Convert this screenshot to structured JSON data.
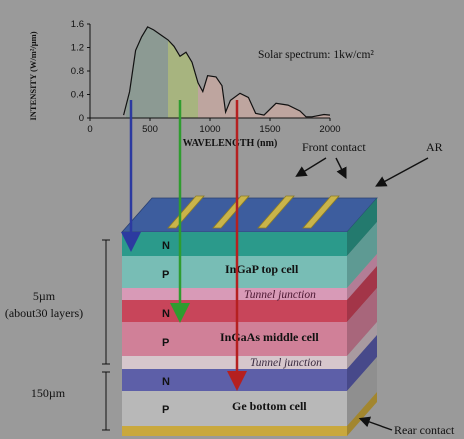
{
  "spectrum": {
    "title": "Solar spectrum: 1kw/cm²",
    "ylabel": "INTENSITY (W/m²/µm)",
    "xlabel": "WAVELENGTH (nm)",
    "xticks": [
      "0",
      "500",
      "1000",
      "1500",
      "2000"
    ],
    "yticks": [
      "0",
      "0.4",
      "0.8",
      "1.2",
      "1.6"
    ]
  },
  "chart_data": {
    "type": "area",
    "title": "Solar spectrum: 1kw/cm²",
    "xlabel": "WAVELENGTH (nm)",
    "ylabel": "INTENSITY (W/m²/µm)",
    "xlim": [
      0,
      2000
    ],
    "ylim": [
      0,
      1.6
    ],
    "grid": false,
    "x": [
      280,
      330,
      380,
      430,
      480,
      530,
      600,
      650,
      700,
      750,
      800,
      850,
      900,
      940,
      980,
      1050,
      1100,
      1130,
      1170,
      1250,
      1320,
      1380,
      1450,
      1550,
      1650,
      1750,
      1800,
      1850,
      1950,
      2000
    ],
    "values": [
      0.05,
      0.45,
      1.15,
      1.38,
      1.55,
      1.5,
      1.4,
      1.33,
      1.22,
      1.05,
      1.12,
      0.95,
      0.6,
      0.45,
      0.72,
      0.7,
      0.55,
      0.1,
      0.3,
      0.42,
      0.35,
      0.08,
      0.05,
      0.25,
      0.22,
      0.12,
      0.02,
      0.02,
      0.06,
      0.05
    ],
    "bands": [
      {
        "name": "InGaP",
        "from": 300,
        "to": 650,
        "color": "#8a9a92"
      },
      {
        "name": "InGaAs",
        "from": 650,
        "to": 900,
        "color": "#a9b87a"
      },
      {
        "name": "Ge",
        "from": 900,
        "to": 2000,
        "color": "#c4a7a0"
      }
    ]
  },
  "labels": {
    "front_contact": "Front contact",
    "ar": "AR",
    "thickness_top": "5µm",
    "thickness_top_sub": "(about30 layers)",
    "thickness_bottom": "150µm",
    "rear_contact": "Rear contact"
  },
  "cells": {
    "top": {
      "n": "N",
      "p": "P",
      "name": "InGaP top cell"
    },
    "tunnel1": "Tunnel junction",
    "middle": {
      "n": "N",
      "p": "P",
      "name": "InGaAs middle cell"
    },
    "tunnel2": "Tunnel junction",
    "bottom": {
      "n": "N",
      "p": "P",
      "name": "Ge bottom cell"
    }
  },
  "colors": {
    "arrow_blue": "#2c3aa0",
    "arrow_green": "#2f9c2f",
    "arrow_red": "#b52020",
    "top_face": "#3d5d9e",
    "finger": "#c9b44a",
    "n_top": "#2b9a8b",
    "p_top": "#78bdb5",
    "tunnel": "#d89ab7",
    "n_mid": "#c8455a",
    "p_mid": "#d08098",
    "n_bot": "#5d5fa8",
    "p_bot": "#b8b8b8",
    "rear": "#c9a83d"
  }
}
